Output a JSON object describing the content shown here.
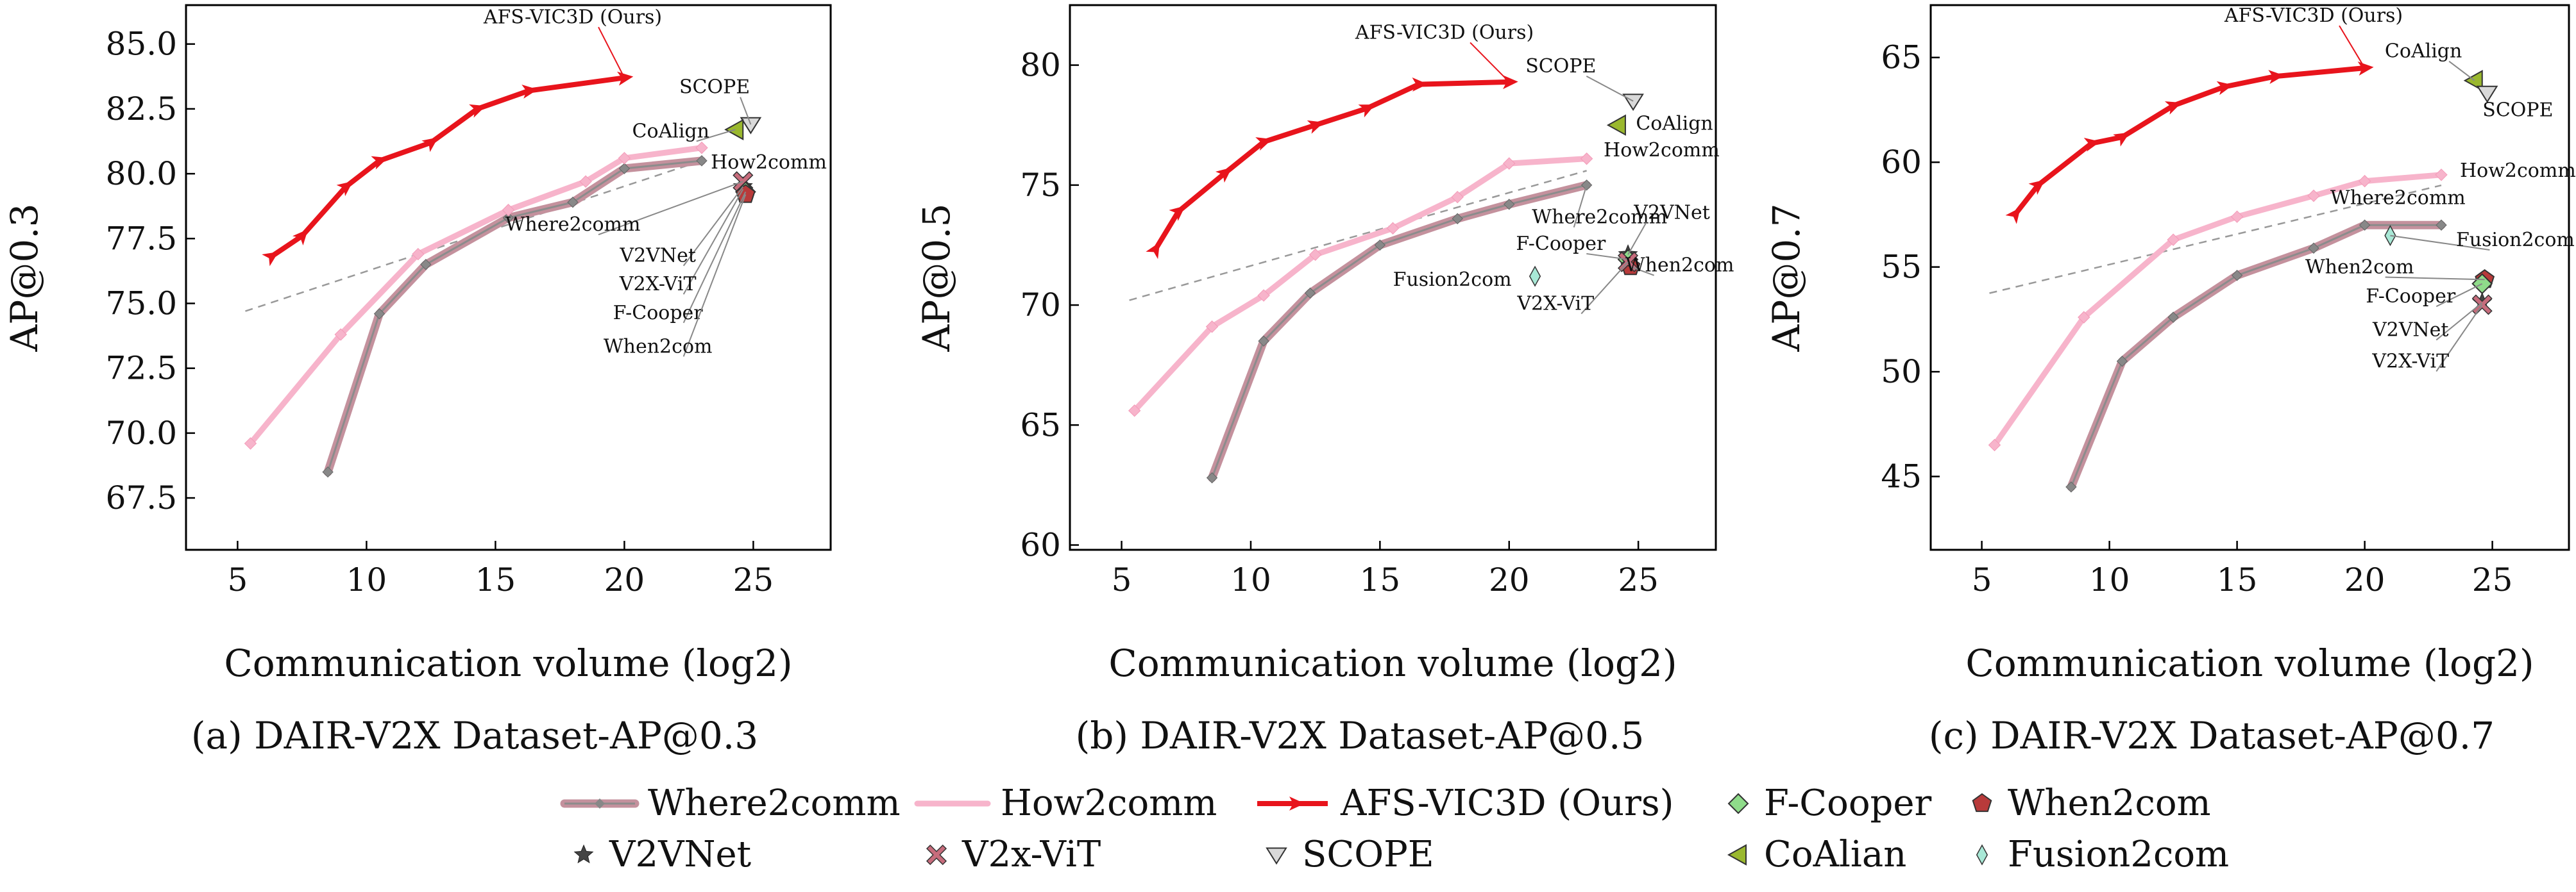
{
  "chart_data": [
    {
      "type": "line",
      "caption": "(a) DAIR-V2X Dataset-AP@0.3",
      "xlabel": "Communication volume (log2)",
      "ylabel": "AP@0.3",
      "xlim": [
        3,
        28
      ],
      "ylim": [
        65.5,
        86.5
      ],
      "xticks": [
        "5",
        "10",
        "15",
        "20",
        "25"
      ],
      "yticks": [
        "67.5",
        "70.0",
        "72.5",
        "75.0",
        "77.5",
        "80.0",
        "82.5",
        "85.0"
      ],
      "series": [
        {
          "name": "Where2comm",
          "x": [
            8.5,
            10.5,
            12.3,
            15.5,
            18.0,
            20.0,
            23.0
          ],
          "y": [
            68.5,
            74.6,
            76.5,
            78.3,
            78.9,
            80.2,
            80.5
          ]
        },
        {
          "name": "How2comm",
          "x": [
            5.5,
            9.0,
            12.0,
            15.5,
            18.5,
            20.0,
            23.0
          ],
          "y": [
            69.6,
            73.8,
            76.9,
            78.6,
            79.7,
            80.6,
            81.0
          ]
        },
        {
          "name": "AFS-VIC3D (Ours)",
          "x": [
            6.3,
            7.5,
            9.2,
            10.5,
            12.5,
            14.3,
            16.3,
            20.0
          ],
          "y": [
            76.8,
            77.6,
            79.5,
            80.5,
            81.2,
            82.5,
            83.2,
            83.7
          ]
        }
      ],
      "baselines": [
        {
          "name": "SCOPE",
          "x": 24.9,
          "y": 81.9
        },
        {
          "name": "CoAlign",
          "x": 24.3,
          "y": 81.7
        },
        {
          "name": "V2VNet",
          "x": 24.6,
          "y": 79.5
        },
        {
          "name": "V2X-ViT",
          "x": 24.6,
          "y": 79.7
        },
        {
          "name": "F-Cooper",
          "x": 24.7,
          "y": 79.3
        },
        {
          "name": "When2com",
          "x": 24.7,
          "y": 79.2
        }
      ],
      "annotations": [
        "AFS-VIC3D (Ours)",
        "SCOPE",
        "CoAlign",
        "How2comm",
        "Where2comm",
        "V2VNet",
        "V2X-ViT",
        "F-Cooper",
        "When2com"
      ]
    },
    {
      "type": "line",
      "caption": "(b) DAIR-V2X Dataset-AP@0.5",
      "xlabel": "Communication volume (log2)",
      "ylabel": "AP@0.5",
      "xlim": [
        3,
        28
      ],
      "ylim": [
        59.8,
        82.5
      ],
      "xticks": [
        "5",
        "10",
        "15",
        "20",
        "25"
      ],
      "yticks": [
        "60",
        "65",
        "70",
        "75",
        "80"
      ],
      "series": [
        {
          "name": "Where2comm",
          "x": [
            8.5,
            10.5,
            12.3,
            15.0,
            18.0,
            20.0,
            23.0
          ],
          "y": [
            62.8,
            68.5,
            70.5,
            72.5,
            73.6,
            74.2,
            75.0
          ]
        },
        {
          "name": "How2comm",
          "x": [
            5.5,
            8.5,
            10.5,
            12.5,
            15.5,
            18.0,
            20.0,
            23.0
          ],
          "y": [
            65.6,
            69.1,
            70.4,
            72.1,
            73.2,
            74.5,
            75.9,
            76.1
          ]
        },
        {
          "name": "AFS-VIC3D (Ours)",
          "x": [
            6.3,
            7.2,
            9.0,
            10.5,
            12.5,
            14.5,
            16.5,
            20.0
          ],
          "y": [
            72.3,
            73.9,
            75.5,
            76.8,
            77.5,
            78.2,
            79.2,
            79.3
          ]
        }
      ],
      "baselines": [
        {
          "name": "SCOPE",
          "x": 24.8,
          "y": 78.5
        },
        {
          "name": "CoAlign",
          "x": 24.2,
          "y": 77.5
        },
        {
          "name": "V2VNet",
          "x": 24.6,
          "y": 72.1
        },
        {
          "name": "F-Cooper",
          "x": 24.6,
          "y": 71.9
        },
        {
          "name": "When2com",
          "x": 24.7,
          "y": 71.6
        },
        {
          "name": "V2X-ViT",
          "x": 24.6,
          "y": 71.8
        },
        {
          "name": "Fusion2com",
          "x": 21.0,
          "y": 71.2
        }
      ],
      "annotations": [
        "AFS-VIC3D (Ours)",
        "SCOPE",
        "CoAlign",
        "How2comm",
        "Where2comm",
        "V2VNet",
        "F-Cooper",
        "When2com",
        "Fusion2com",
        "V2X-ViT"
      ]
    },
    {
      "type": "line",
      "caption": "(c) DAIR-V2X Dataset-AP@0.7",
      "xlabel": "Communication volume (log2)",
      "ylabel": "AP@0.7",
      "xlim": [
        3,
        28
      ],
      "ylim": [
        41.5,
        67.5
      ],
      "xticks": [
        "5",
        "10",
        "15",
        "20",
        "25"
      ],
      "yticks": [
        "45",
        "50",
        "55",
        "60",
        "65"
      ],
      "series": [
        {
          "name": "Where2comm",
          "x": [
            8.5,
            10.5,
            12.5,
            15.0,
            18.0,
            20.0,
            23.0
          ],
          "y": [
            44.5,
            50.5,
            52.6,
            54.6,
            55.9,
            57.0,
            57.0
          ]
        },
        {
          "name": "How2comm",
          "x": [
            5.5,
            9.0,
            12.5,
            15.0,
            18.0,
            20.0,
            23.0
          ],
          "y": [
            46.5,
            52.6,
            56.3,
            57.4,
            58.4,
            59.1,
            59.4
          ]
        },
        {
          "name": "AFS-VIC3D (Ours)",
          "x": [
            6.3,
            7.2,
            9.3,
            10.5,
            12.5,
            14.5,
            16.5,
            20.0
          ],
          "y": [
            57.5,
            58.9,
            60.9,
            61.2,
            62.7,
            63.6,
            64.1,
            64.5
          ]
        }
      ],
      "baselines": [
        {
          "name": "CoAlign",
          "x": 24.3,
          "y": 63.9
        },
        {
          "name": "SCOPE",
          "x": 24.8,
          "y": 63.3
        },
        {
          "name": "Fusion2com",
          "x": 21.0,
          "y": 56.5
        },
        {
          "name": "When2com",
          "x": 24.7,
          "y": 54.4
        },
        {
          "name": "F-Cooper",
          "x": 24.6,
          "y": 54.2
        },
        {
          "name": "V2VNet",
          "x": 24.6,
          "y": 53.3
        },
        {
          "name": "V2X-ViT",
          "x": 24.6,
          "y": 53.2
        }
      ],
      "annotations": [
        "AFS-VIC3D (Ours)",
        "CoAlign",
        "SCOPE",
        "How2comm",
        "Where2comm",
        "Fusion2com",
        "When2com",
        "F-Cooper",
        "V2VNet",
        "V2X-ViT"
      ]
    }
  ],
  "legend": {
    "items": [
      {
        "name": "Where2comm",
        "marker": "line-thick-gray"
      },
      {
        "name": "How2comm",
        "marker": "line-pink"
      },
      {
        "name": "AFS-VIC3D (Ours)",
        "marker": "line-red-arrow"
      },
      {
        "name": "F-Cooper",
        "marker": "diamond-green"
      },
      {
        "name": "When2com",
        "marker": "pentagon-red"
      },
      {
        "name": "V2VNet",
        "marker": "star-dark"
      },
      {
        "name": "V2x-ViT",
        "marker": "cross-pink"
      },
      {
        "name": "SCOPE",
        "marker": "triangle-down-gray"
      },
      {
        "name": "CoAlian",
        "marker": "triangle-left-olive"
      },
      {
        "name": "Fusion2com",
        "marker": "thin-diamond-teal"
      }
    ]
  },
  "colors": {
    "where2comm": "#c4919d",
    "where2comm_core": "#8c8c8c",
    "how2comm": "#f7b4cb",
    "ours": "#e8141c",
    "fcooper": "#8fdc8a",
    "when2com": "#b83a3a",
    "v2vnet": "#444444",
    "v2xvit": "#c76c7c",
    "scope": "#d9d9d9",
    "coalign": "#9ab82e",
    "fusion2com": "#a8e8d6"
  }
}
